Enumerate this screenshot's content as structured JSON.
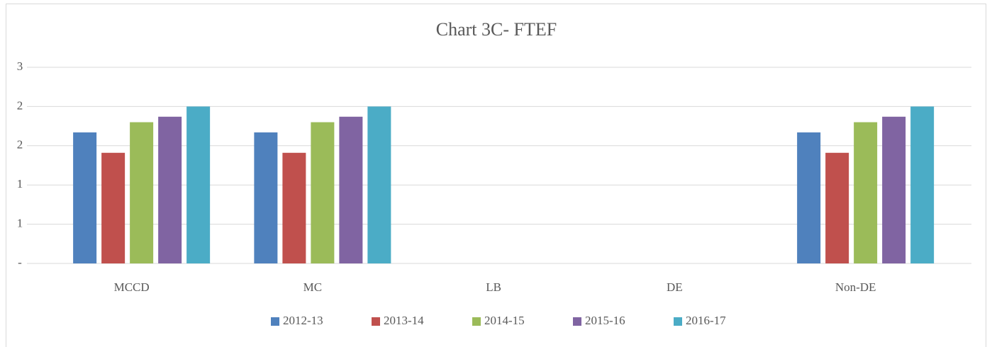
{
  "chart_data": {
    "type": "bar",
    "title": "Chart 3C- FTEF",
    "categories": [
      "MCCD",
      "MC",
      "LB",
      "DE",
      "Non-DE"
    ],
    "series": [
      {
        "name": "2012-13",
        "color": "#4f81bd",
        "values": [
          1.67,
          1.67,
          0,
          0,
          1.67
        ]
      },
      {
        "name": "2013-14",
        "color": "#c0504d",
        "values": [
          1.41,
          1.41,
          0,
          0,
          1.41
        ]
      },
      {
        "name": "2014-15",
        "color": "#9bbb59",
        "values": [
          1.8,
          1.8,
          0,
          0,
          1.8
        ]
      },
      {
        "name": "2015-16",
        "color": "#8064a2",
        "values": [
          1.87,
          1.87,
          0,
          0,
          1.87
        ]
      },
      {
        "name": "2016-17",
        "color": "#4bacc6",
        "values": [
          2,
          2,
          0,
          0,
          2
        ]
      }
    ],
    "ylim": [
      0,
      2.5
    ],
    "yticks": [
      {
        "value": 0,
        "label": "-"
      },
      {
        "value": 0.5,
        "label": "1"
      },
      1,
      {
        "value": 1.5,
        "label": "2"
      },
      2,
      {
        "value": 2.5,
        "label": "3"
      }
    ],
    "grid": true,
    "legend": "bottom"
  }
}
